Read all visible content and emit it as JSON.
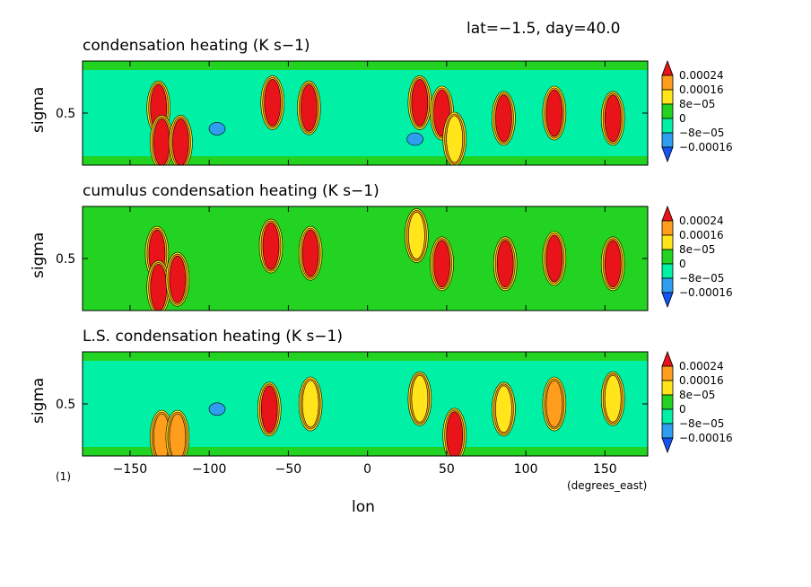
{
  "header": {
    "text": "lat=−1.5, day=40.0"
  },
  "footnote": "(1)",
  "colors": {
    "dark_red": "#e8141a",
    "orange": "#ff9e1c",
    "yellow": "#ffe51a",
    "green": "#22d322",
    "aqua": "#00f0a6",
    "light_blue": "#2f9ef0",
    "blue": "#1255f2",
    "outline": "#000000"
  },
  "chart_data": [
    {
      "type": "heatmap",
      "title": "condensation heating (K s−1)",
      "ylabel": "sigma",
      "yticks": [
        "0.5"
      ],
      "background_level": "aqua",
      "blobs": [
        {
          "lon": -132,
          "sigma": 0.55,
          "level": "red"
        },
        {
          "lon": -130,
          "sigma": 0.22,
          "level": "red"
        },
        {
          "lon": -118,
          "sigma": 0.22,
          "level": "red"
        },
        {
          "lon": -60,
          "sigma": 0.6,
          "level": "red"
        },
        {
          "lon": -37,
          "sigma": 0.55,
          "level": "red"
        },
        {
          "lon": 33,
          "sigma": 0.6,
          "level": "red"
        },
        {
          "lon": 47,
          "sigma": 0.5,
          "level": "red"
        },
        {
          "lon": 55,
          "sigma": 0.25,
          "level": "yellow"
        },
        {
          "lon": 86,
          "sigma": 0.45,
          "level": "red"
        },
        {
          "lon": 118,
          "sigma": 0.5,
          "level": "red"
        },
        {
          "lon": 155,
          "sigma": 0.45,
          "level": "red"
        },
        {
          "lon": -95,
          "sigma": 0.35,
          "level": "light_blue"
        },
        {
          "lon": 30,
          "sigma": 0.25,
          "level": "light_blue"
        }
      ]
    },
    {
      "type": "heatmap",
      "title": "cumulus condensation heating (K s−1)",
      "ylabel": "sigma",
      "yticks": [
        "0.5"
      ],
      "background_level": "green",
      "blobs": [
        {
          "lon": -133,
          "sigma": 0.55,
          "level": "red"
        },
        {
          "lon": -132,
          "sigma": 0.22,
          "level": "red"
        },
        {
          "lon": -120,
          "sigma": 0.3,
          "level": "red"
        },
        {
          "lon": -61,
          "sigma": 0.62,
          "level": "red"
        },
        {
          "lon": -36,
          "sigma": 0.55,
          "level": "red"
        },
        {
          "lon": 31,
          "sigma": 0.72,
          "level": "yellow"
        },
        {
          "lon": 47,
          "sigma": 0.45,
          "level": "red"
        },
        {
          "lon": 87,
          "sigma": 0.45,
          "level": "red"
        },
        {
          "lon": 118,
          "sigma": 0.5,
          "level": "red"
        },
        {
          "lon": 155,
          "sigma": 0.45,
          "level": "red"
        }
      ]
    },
    {
      "type": "heatmap",
      "title": "L.S. condensation heating (K s−1)",
      "ylabel": "sigma",
      "yticks": [
        "0.5"
      ],
      "background_level": "aqua",
      "blobs": [
        {
          "lon": -130,
          "sigma": 0.18,
          "level": "orange"
        },
        {
          "lon": -120,
          "sigma": 0.18,
          "level": "orange"
        },
        {
          "lon": -95,
          "sigma": 0.45,
          "level": "light_blue"
        },
        {
          "lon": -62,
          "sigma": 0.45,
          "level": "red"
        },
        {
          "lon": -36,
          "sigma": 0.5,
          "level": "yellow"
        },
        {
          "lon": 33,
          "sigma": 0.55,
          "level": "yellow"
        },
        {
          "lon": 55,
          "sigma": 0.2,
          "level": "red"
        },
        {
          "lon": 86,
          "sigma": 0.45,
          "level": "yellow"
        },
        {
          "lon": 118,
          "sigma": 0.5,
          "level": "orange"
        },
        {
          "lon": 155,
          "sigma": 0.55,
          "level": "yellow"
        }
      ]
    }
  ],
  "shared_axes": {
    "x_ticks": [
      "−150",
      "−100",
      "−50",
      "0",
      "50",
      "100",
      "150"
    ],
    "x_tick_values": [
      -150,
      -100,
      -50,
      0,
      50,
      100,
      150
    ],
    "xlim": [
      -180,
      177
    ],
    "xlabel": "lon",
    "x_units": "(degrees_east)",
    "ylim": [
      0,
      1
    ]
  },
  "legend": {
    "labels": [
      "0.00024",
      "0.00016",
      "8e−05",
      "0",
      "−8e−05",
      "−0.00016"
    ],
    "swatches": [
      "red",
      "orange",
      "yellow",
      "green",
      "aqua",
      "light_blue",
      "blue"
    ]
  }
}
